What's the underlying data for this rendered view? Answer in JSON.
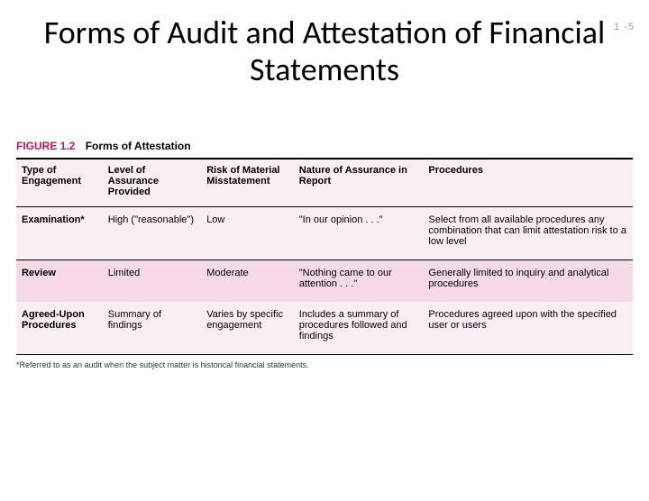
{
  "page_number": "1 -5",
  "title": "Forms of Audit and Attestation of Financial Statements",
  "title_fontsize": 36,
  "page_number_color": "#7fb38a",
  "figure": {
    "label_number": "FIGURE 1.2",
    "label_caption": "Forms of Attestation",
    "accent_color": "#c2185b",
    "band_light": "#f9eef3",
    "band_pink": "#f5d9e6",
    "columns": [
      {
        "header": "Type of Engagement",
        "width": "14%"
      },
      {
        "header": "Level of Assurance Provided",
        "width": "16%"
      },
      {
        "header": "Risk of Material Misstatement",
        "width": "15%"
      },
      {
        "header": "Nature of Assurance in Report",
        "width": "21%"
      },
      {
        "header": "Procedures",
        "width": "34%"
      }
    ],
    "rows": [
      {
        "band": "light",
        "cells": [
          "Examination*",
          "High (\"reasonable\")",
          "Low",
          "\"In our opinion . . .\"",
          "Select from all available procedures any combination that can limit attestation risk to a low level"
        ]
      },
      {
        "band": "pink",
        "cells": [
          "Review",
          "Limited",
          "Moderate",
          "\"Nothing came to our attention . . .\"",
          "Generally limited to inquiry and analytical procedures"
        ]
      },
      {
        "band": "light",
        "cells": [
          "Agreed-Upon Procedures",
          "Summary of findings",
          "Varies by specific engagement",
          "Includes a summary of procedures followed and findings",
          "Procedures agreed upon with the specified user or users"
        ]
      }
    ],
    "footnote": "*Referred to as an audit when the subject matter is historical financial statements."
  }
}
